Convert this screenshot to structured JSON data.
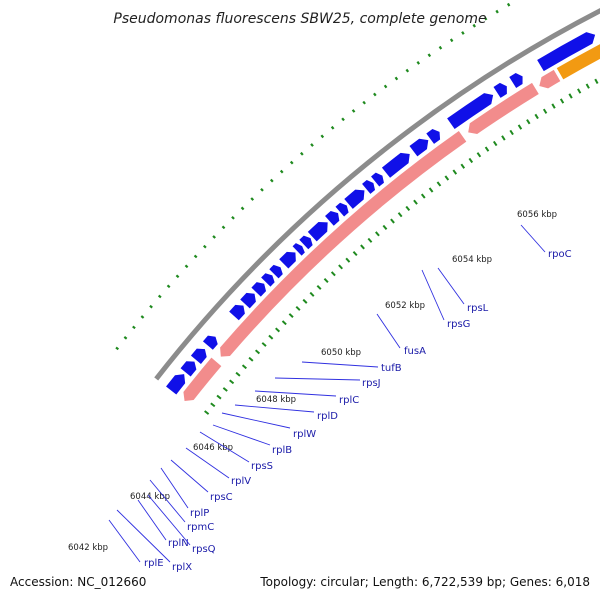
{
  "title": "Pseudomonas fluorescens SBW25, complete genome",
  "accession": "Accession: NC_012660",
  "summary": "Topology: circular; Length: 6,722,539 bp; Genes: 6,018",
  "colors": {
    "backbone": "#8c8c8c",
    "forward_gene": "#1010e8",
    "reverse_gene": "#f28c8c",
    "rna_gene": "#f29a12",
    "label_line": "#3030e0",
    "gc_tick": "#1f8a1f"
  },
  "kbp_labels": [
    "6042 kbp",
    "6044 kbp",
    "6046 kbp",
    "6048 kbp",
    "6050 kbp",
    "6052 kbp",
    "6054 kbp",
    "6056 kbp"
  ],
  "gene_labels": [
    "rplE",
    "rplX",
    "rplN",
    "rpsQ",
    "rpmC",
    "rplP",
    "rpsC",
    "rplV",
    "rpsS",
    "rplB",
    "rplW",
    "rplD",
    "rplC",
    "rpsJ",
    "tufB",
    "fusA",
    "rpsG",
    "rpsL",
    "rpoC"
  ]
}
